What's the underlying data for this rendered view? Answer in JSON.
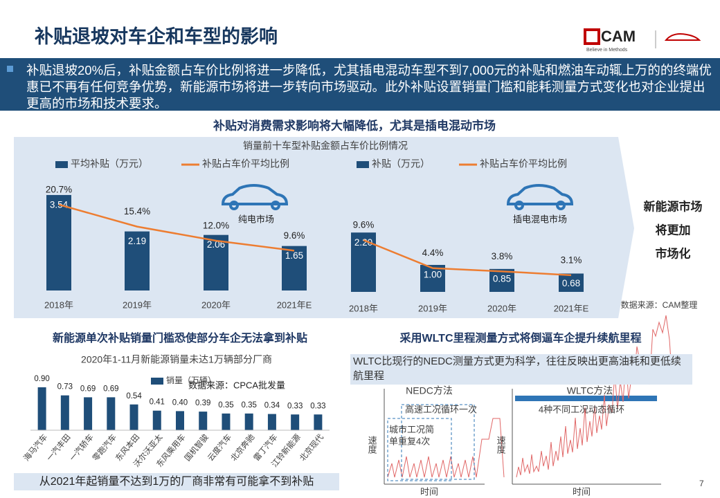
{
  "header": {
    "title": "补贴退坡对车企和车型的影响",
    "logo": "CAM",
    "logo_tagline": "Believe in Methods"
  },
  "intro": "补贴退坡20%后，补贴金额占车价比例将进一步降低，尤其插电混动车型不到7,000元的补贴和燃油车动辄上万的的终端优惠已不再有任何竞争优势，新能源市场将进一步转向市场驱动。此外补贴设置销量门槛和能耗测量方式变化也对企业提出更高的市场和技术要求。",
  "section1": {
    "heading": "补贴对消费需求影响将大幅降低，尤其是插电混动市场",
    "chart_title": "销量前十车型补贴金额占车价比例情况",
    "conclusion": [
      "新能源市场",
      "将更加",
      "市场化"
    ],
    "source": "数据来源：CAM整理"
  },
  "chart_data": [
    {
      "type": "bar",
      "annotation": "纯电市场",
      "categories": [
        "2018年",
        "2019年",
        "2020年",
        "2021年E"
      ],
      "series": [
        {
          "name": "平均补贴（万元）",
          "color": "#1f4e79",
          "values": [
            3.54,
            2.19,
            2.06,
            1.65
          ]
        },
        {
          "name": "补贴占车价平均比例",
          "color": "#ed7d31",
          "axis": "y2",
          "values": [
            20.7,
            15.4,
            12.0,
            9.6
          ],
          "value_labels": [
            "20.7%",
            "15.4%",
            "12.0%",
            "9.6%"
          ]
        }
      ],
      "ylim": [
        0,
        4
      ],
      "y2lim": [
        0,
        26
      ]
    },
    {
      "type": "bar",
      "annotation": "插电混电市场",
      "categories": [
        "2018年",
        "2019年",
        "2020年",
        "2021年E"
      ],
      "series": [
        {
          "name": "补贴（万元）",
          "color": "#1f4e79",
          "values": [
            2.2,
            1.0,
            0.85,
            0.68
          ],
          "value_labels": [
            "2.20",
            "1.00",
            "0.85",
            "0.68"
          ]
        },
        {
          "name": "补贴占车价平均比例",
          "color": "#ed7d31",
          "axis": "y2",
          "values": [
            9.6,
            4.4,
            3.8,
            3.1
          ],
          "value_labels": [
            "9.6%",
            "4.4%",
            "3.8%",
            "3.1%"
          ]
        }
      ],
      "ylim": [
        0,
        4
      ],
      "y2lim": [
        0,
        20
      ]
    },
    {
      "type": "bar",
      "title": "2020年1-11月新能源销量未达1万辆部分厂商",
      "annotation": "数据来源：CPCA批发量",
      "categories": [
        "海马汽车",
        "一汽丰田",
        "一汽轿车",
        "零跑汽车",
        "东风本田",
        "沃尔沃亚太",
        "东风乘用车",
        "国机智骏",
        "云度汽车",
        "北京奔驰",
        "雷丁汽车",
        "江铃新能源",
        "北京现代"
      ],
      "series": [
        {
          "name": "销量（万辆）",
          "color": "#1f4e79",
          "values": [
            0.9,
            0.73,
            0.69,
            0.69,
            0.54,
            0.41,
            0.4,
            0.39,
            0.35,
            0.35,
            0.34,
            0.33,
            0.33
          ],
          "value_labels": [
            "0.90",
            "0.73",
            "0.69",
            "0.69",
            "0.54",
            "0.41",
            "0.40",
            "0.39",
            "0.35",
            "0.35",
            "0.34",
            "0.33",
            "0.33"
          ]
        }
      ],
      "ylim": [
        0,
        1
      ]
    }
  ],
  "section2": {
    "heading": "新能源单次补贴销量门槛恐使部分车企无法拿到补贴",
    "footer": "从2021年起销量不达到1万的厂商非常有可能拿不到补贴"
  },
  "section3": {
    "heading": "采用WLTC里程测量方式将倒逼车企提升续航里程",
    "text": "WLTC比现行的NEDC测量方式更为科学，往往反映出更高油耗和更低续航里程",
    "nedc": {
      "title": "NEDC方法",
      "note1": "高速工况循环一次",
      "note2": "城市工况简",
      "note3": "单重复4次",
      "y_label": "速度",
      "x_label": "时间"
    },
    "wltc": {
      "title": "WLTC方法",
      "note1": "4种不同工况动态循环",
      "y_label": "速度",
      "x_label": "时间"
    }
  },
  "page_number": "7"
}
